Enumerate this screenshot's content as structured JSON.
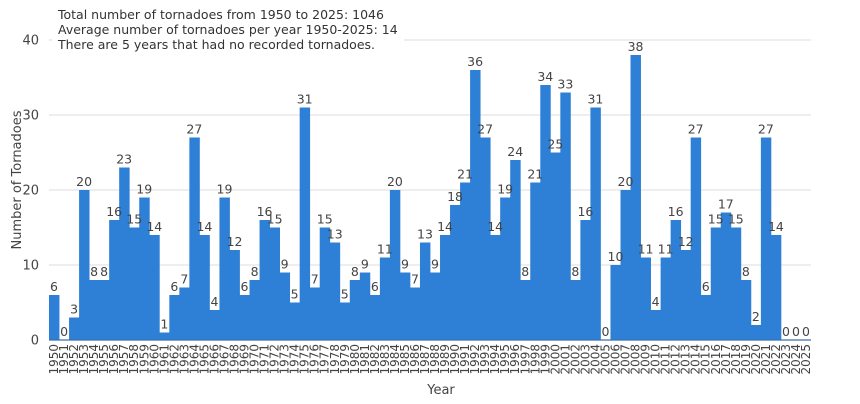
{
  "chart_data": {
    "type": "bar",
    "xlabel": "Year",
    "ylabel": "Number of Tornadoes",
    "ylim": [
      0,
      40
    ],
    "yticks": [
      0,
      10,
      20,
      30,
      40
    ],
    "grid": true,
    "legend": "none",
    "bar_color": "#2e7fd6",
    "categories": [
      "1950",
      "1951",
      "1952",
      "1953",
      "1954",
      "1955",
      "1956",
      "1957",
      "1958",
      "1959",
      "1960",
      "1961",
      "1962",
      "1963",
      "1964",
      "1965",
      "1966",
      "1967",
      "1968",
      "1969",
      "1970",
      "1971",
      "1972",
      "1973",
      "1974",
      "1975",
      "1976",
      "1977",
      "1978",
      "1979",
      "1980",
      "1981",
      "1982",
      "1983",
      "1984",
      "1985",
      "1986",
      "1987",
      "1988",
      "1989",
      "1990",
      "1991",
      "1992",
      "1993",
      "1994",
      "1995",
      "1996",
      "1997",
      "1998",
      "1999",
      "2000",
      "2001",
      "2002",
      "2003",
      "2004",
      "2005",
      "2006",
      "2007",
      "2008",
      "2009",
      "2010",
      "2011",
      "2012",
      "2013",
      "2014",
      "2015",
      "2016",
      "2017",
      "2018",
      "2019",
      "2020",
      "2021",
      "2022",
      "2023",
      "2024",
      "2025"
    ],
    "values": [
      6,
      0,
      3,
      20,
      8,
      8,
      16,
      23,
      15,
      19,
      14,
      1,
      6,
      7,
      27,
      14,
      4,
      19,
      12,
      6,
      8,
      16,
      15,
      9,
      5,
      31,
      7,
      15,
      13,
      5,
      8,
      9,
      6,
      11,
      20,
      9,
      7,
      13,
      9,
      14,
      18,
      21,
      36,
      27,
      14,
      19,
      24,
      8,
      21,
      34,
      25,
      33,
      8,
      16,
      31,
      0,
      10,
      20,
      38,
      11,
      4,
      11,
      16,
      12,
      27,
      6,
      15,
      17,
      15,
      8,
      2,
      27,
      14,
      0,
      0,
      0
    ],
    "annotations": [
      "Total number of tornadoes from 1950 to 2025: 1046",
      "Average number of tornadoes per year 1950-2025: 14",
      "There are 5 years that had no recorded tornadoes."
    ]
  }
}
